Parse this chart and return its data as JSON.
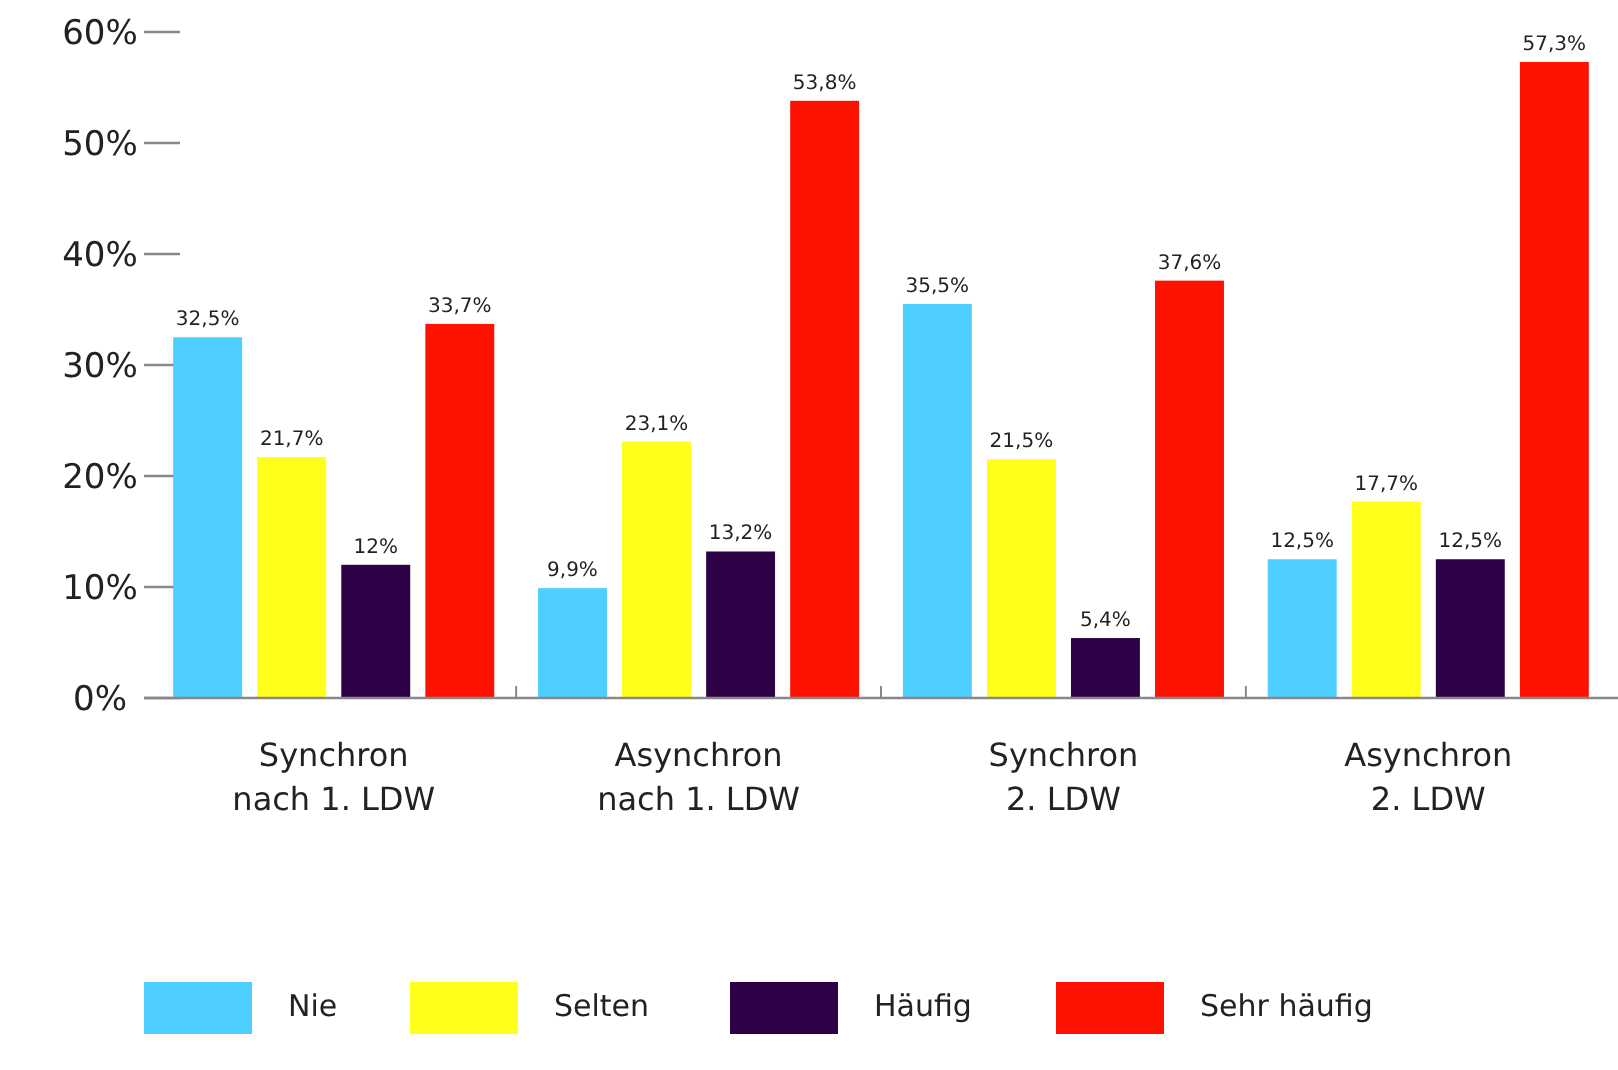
{
  "chart_data": {
    "type": "bar",
    "categories": [
      "Synchron\nnach 1. LDW",
      "Asynchron\nnach 1. LDW",
      "Synchron\n2. LDW",
      "Asynchron\n2. LDW"
    ],
    "series": [
      {
        "name": "Nie",
        "color": "#4dcfff",
        "values": [
          32.5,
          9.9,
          35.5,
          12.5
        ],
        "value_labels": [
          "32,5%",
          "9,9%",
          "35,5%",
          "12,5%"
        ]
      },
      {
        "name": "Selten",
        "color": "#ffff1a",
        "values": [
          21.7,
          23.1,
          21.5,
          17.7
        ],
        "value_labels": [
          "21,7%",
          "23,1%",
          "21,5%",
          "17,7%"
        ]
      },
      {
        "name": "Häufig",
        "color": "#2e0045",
        "values": [
          12,
          13.2,
          5.4,
          12.5
        ],
        "value_labels": [
          "12%",
          "13,2%",
          "5,4%",
          "12,5%"
        ]
      },
      {
        "name": "Sehr häufig",
        "color": "#ff1100",
        "values": [
          33.7,
          53.8,
          37.6,
          57.3
        ],
        "value_labels": [
          "33,7%",
          "53,8%",
          "37,6%",
          "57,3%"
        ]
      }
    ],
    "ylim": [
      0,
      60
    ],
    "yticks": [
      {
        "value": 0,
        "label": "0%"
      },
      {
        "value": 10,
        "label": "10%"
      },
      {
        "value": 20,
        "label": "20%"
      },
      {
        "value": 30,
        "label": "30%"
      },
      {
        "value": 40,
        "label": "40%"
      },
      {
        "value": 50,
        "label": "50%"
      },
      {
        "value": 60,
        "label": "60%"
      }
    ],
    "grid": false,
    "legend": "bottom"
  }
}
